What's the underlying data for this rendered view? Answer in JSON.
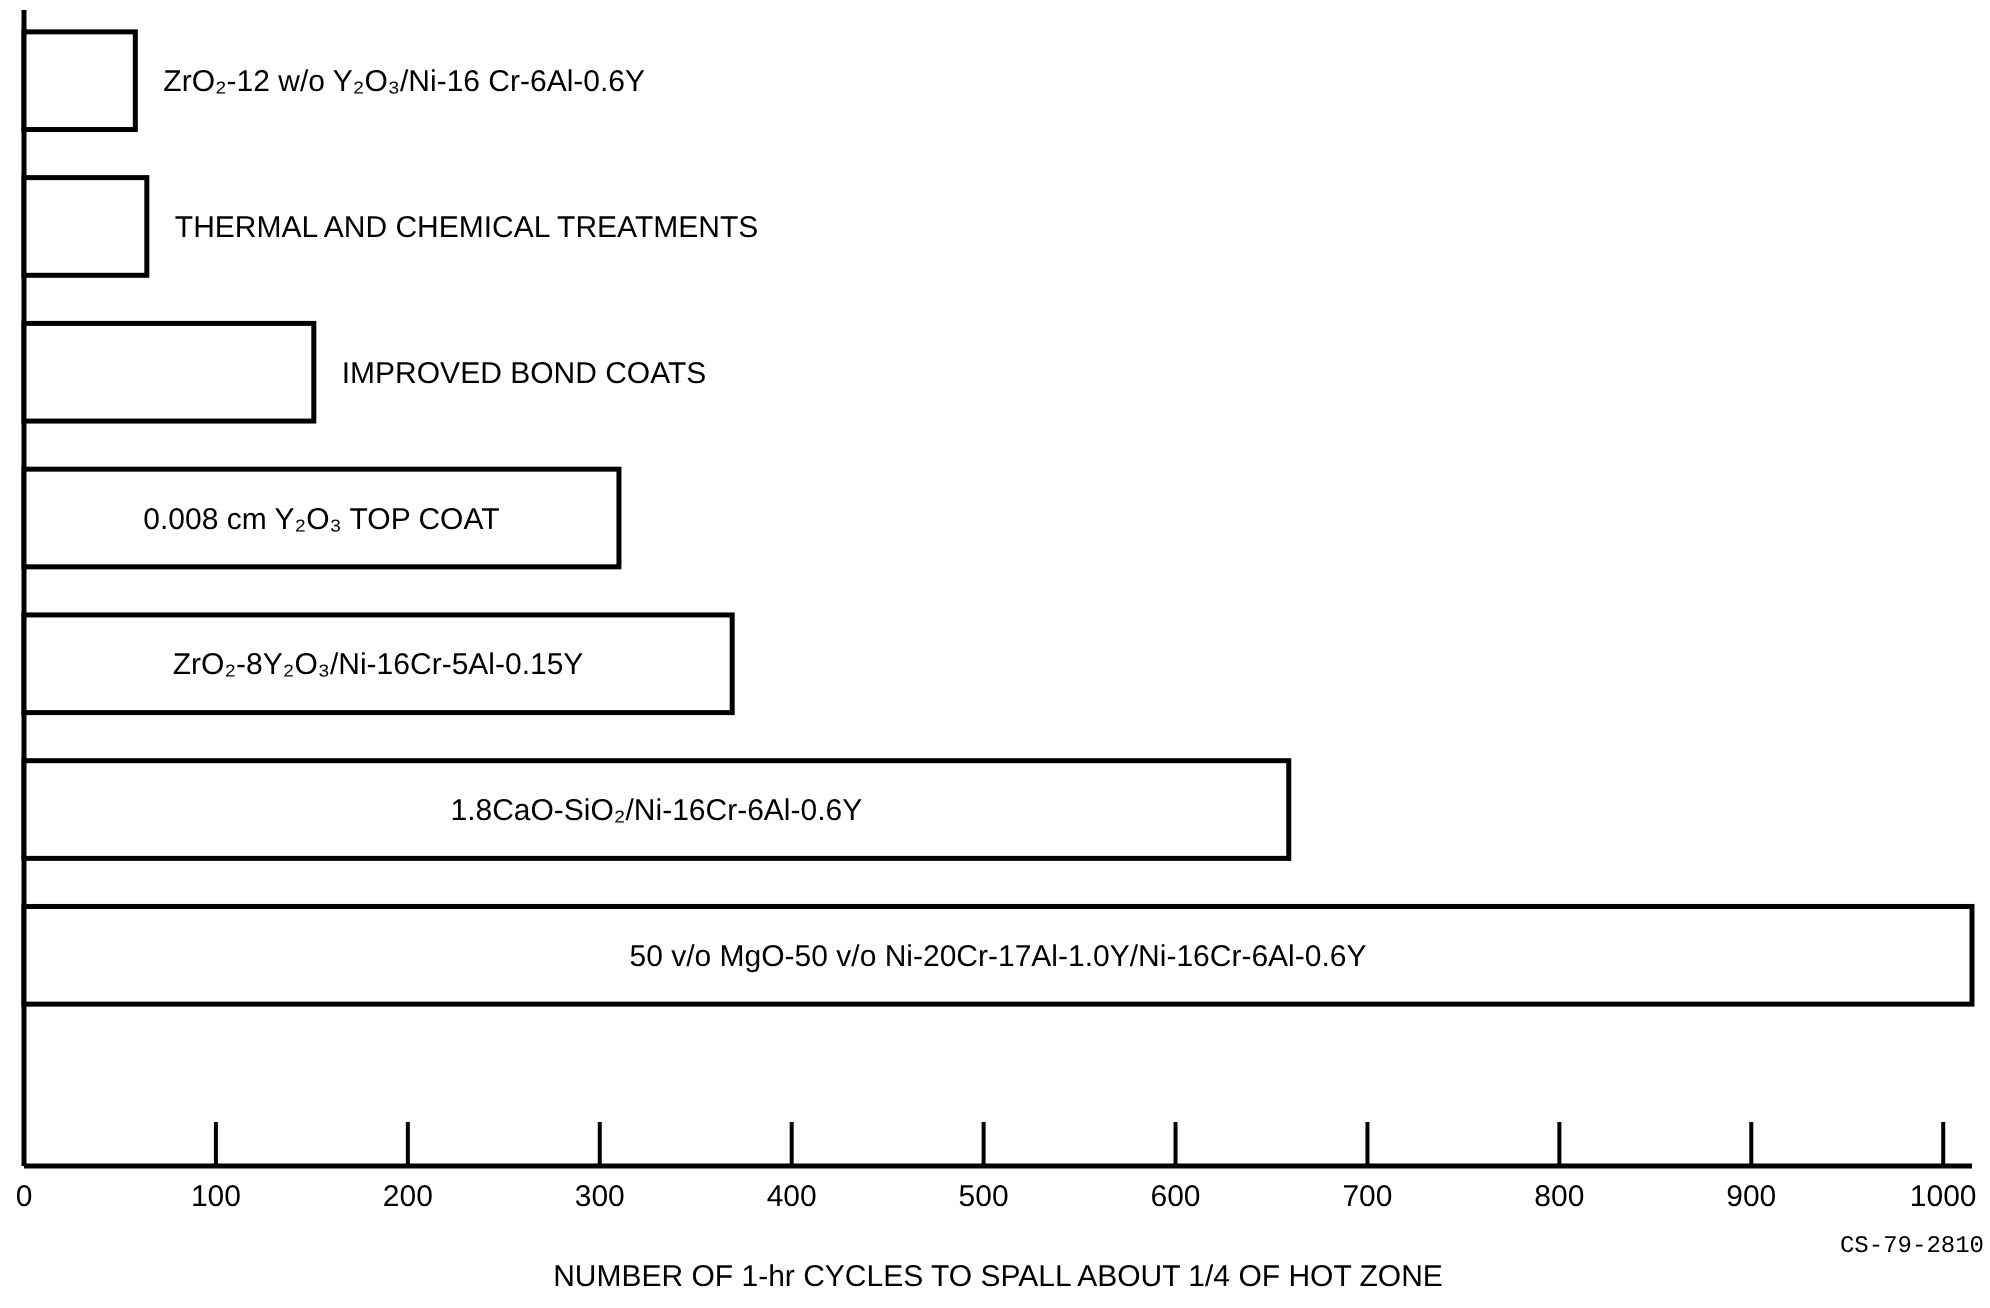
{
  "chart_data": {
    "type": "bar",
    "orientation": "horizontal",
    "xlabel": "NUMBER OF 1-hr CYCLES TO SPALL ABOUT 1/4 OF HOT ZONE",
    "categories": [
      "ZrO₂-12 w/o Y₂O₃/Ni-16 Cr-6Al-0.6Y",
      "THERMAL AND CHEMICAL TREATMENTS",
      "IMPROVED BOND COATS",
      "0.008 cm Y₂O₃ TOP COAT",
      "ZrO₂-8Y₂O₃/Ni-16Cr-5Al-0.15Y",
      "1.8CaO-SiO₂/Ni-16Cr-6Al-0.6Y",
      "50 v/o MgO-50 v/o Ni-20Cr-17Al-1.0Y/Ni-16Cr-6Al-0.6Y"
    ],
    "values": [
      58,
      64,
      151,
      310,
      369,
      659,
      1015
    ],
    "color": "#ffffff",
    "xlim": [
      0,
      1015
    ],
    "xticks": [
      0,
      100,
      200,
      300,
      400,
      500,
      600,
      700,
      800,
      900,
      1000
    ],
    "tick_labels": "x",
    "grid": false,
    "annotations": [
      "CS-79-2810"
    ]
  }
}
